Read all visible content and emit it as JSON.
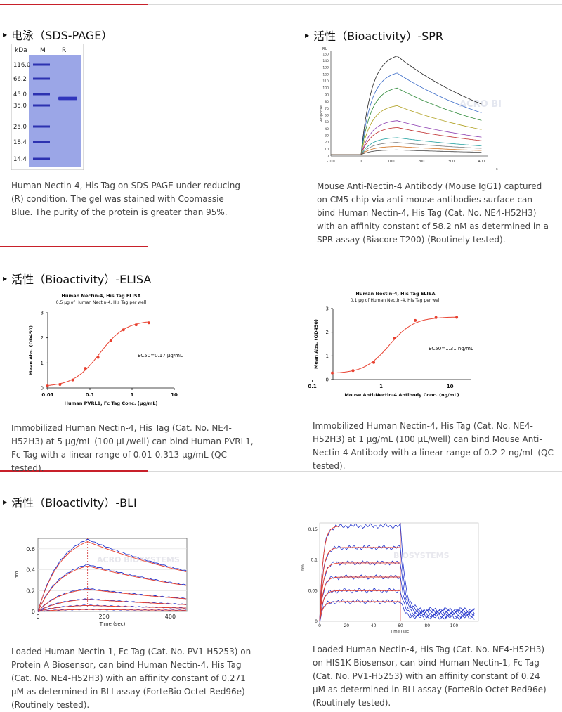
{
  "sections": {
    "sds": {
      "title": "电泳（SDS-PAGE）",
      "gel": {
        "header_kda": "kDa",
        "header_m": "M",
        "header_r": "R",
        "markers": [
          "116.0",
          "66.2",
          "45.0",
          "35.0",
          "25.0",
          "18.4",
          "14.4"
        ]
      },
      "caption": "Human Nectin-4, His Tag on SDS-PAGE under reducing (R) condition. The gel was stained with Coomassie Blue. The purity of the protein is greater than 95%."
    },
    "spr": {
      "title": "活性（Bioactivity）-SPR",
      "caption": "Mouse Anti-Nectin-4 Antibody (Mouse IgG1) captured on CM5 chip via anti-mouse antibodies surface can bind Human Nectin-4, His Tag (Cat. No. NE4-H52H3) with an affinity constant of 58.2 nM as determined in a SPR assay (Biacore T200) (Routinely tested)."
    },
    "elisa": {
      "title": "活性（Bioactivity）-ELISA",
      "caption_left": "Immobilized Human Nectin-4, His Tag (Cat. No. NE4-H52H3) at 5 μg/mL (100 μL/well) can bind Human PVRL1, Fc Tag with a linear range of 0.01-0.313 μg/mL (QC tested).",
      "caption_right": "Immobilized Human Nectin-4, His Tag (Cat. No. NE4-H52H3) at 1 μg/mL (100 μL/well) can bind Mouse Anti-Nectin-4 Antibody with a linear range of 0.2-2 ng/mL (QC tested)."
    },
    "bli": {
      "title": "活性（Bioactivity）-BLI",
      "caption_left": "Loaded Human Nectin-1, Fc Tag (Cat. No. PV1-H5253) on Protein A Biosensor, can bind Human Nectin-4, His Tag (Cat. No. NE4-H52H3) with an affinity constant of 0.271 μM as determined in BLI assay (ForteBio Octet Red96e) (Routinely tested).",
      "caption_right": "Loaded Human Nectin-4, His Tag (Cat. No. NE4-H52H3) on HIS1K Biosensor, can bind Human Nectin-1, Fc Tag (Cat. No. PV1-H5253) with an affinity constant of 0.24 μM as determined in BLI assay (ForteBio Octet Red96e) (Routinely tested)."
    }
  },
  "colors": {
    "accent": "#c8202a",
    "fit": "#e8402f",
    "blue": "#2233cc"
  },
  "chart_data": [
    {
      "id": "spr",
      "type": "line",
      "title": "",
      "xlabel": "s",
      "ylabel": "Response",
      "yunit": "RU",
      "xticks": [
        "-100",
        "0",
        "100",
        "200",
        "300",
        "400"
      ],
      "yticks": [
        "0",
        "10",
        "20",
        "30",
        "40",
        "50",
        "60",
        "70",
        "80",
        "90",
        "100",
        "110",
        "120",
        "130",
        "140",
        "150"
      ],
      "xlim": [
        -100,
        420
      ],
      "ylim": [
        0,
        155
      ],
      "series_peaks": [
        145,
        120,
        98,
        72,
        50,
        40,
        25,
        18,
        12,
        7
      ],
      "watermark": "ACRO BIOSYSTEMS"
    },
    {
      "id": "elisa1",
      "type": "scatter",
      "title": "Human Nectin-4, His Tag ELISA",
      "subtitle": "0.5 μg of Human Nectin-4, His Tag per well",
      "xlabel": "Human PVRL1, Fc Tag Conc. (μg/mL)",
      "ylabel": "Mean Abs. (OD450)",
      "xticks": [
        "0.01",
        "0.1",
        "1",
        "10"
      ],
      "yticks": [
        "0",
        "1",
        "2",
        "3"
      ],
      "xlim_log": [
        -2,
        1
      ],
      "ylim": [
        0,
        3
      ],
      "x": [
        0.0098,
        0.0195,
        0.039,
        0.078,
        0.156,
        0.313,
        0.625,
        1.25,
        2.5
      ],
      "y": [
        0.08,
        0.14,
        0.32,
        0.78,
        1.22,
        1.88,
        2.32,
        2.52,
        2.6
      ],
      "fit": {
        "bottom": 0.05,
        "top": 2.7,
        "ec50": 0.17,
        "hill": 1.4
      },
      "annotation": "EC50=0.17 μg/mL"
    },
    {
      "id": "elisa2",
      "type": "scatter",
      "title": "Human Nectin-4, His Tag ELISA",
      "subtitle": "0.1 μg of Human Nectin-4, His Tag per well",
      "xlabel": "Mouse Anti-Nectin-4 Antibody Conc. (ng/mL)",
      "ylabel": "Mean Abs. (OD450)",
      "xticks": [
        "0.1",
        "1",
        "10"
      ],
      "yticks": [
        "0",
        "1",
        "2",
        "3"
      ],
      "xlim_log": [
        -0.7,
        1.3
      ],
      "ylim": [
        0,
        3
      ],
      "x": [
        0.195,
        0.39,
        0.78,
        1.56,
        3.125,
        6.25,
        12.5
      ],
      "y": [
        0.28,
        0.38,
        0.72,
        1.75,
        2.5,
        2.62,
        2.63
      ],
      "fit": {
        "bottom": 0.25,
        "top": 2.65,
        "ec50": 1.31,
        "hill": 2.4
      },
      "annotation": "EC50=1.31 ng/mL"
    },
    {
      "id": "bli1",
      "type": "line",
      "xlabel": "Time (sec)",
      "ylabel": "nm",
      "xticks": [
        "0",
        "200",
        "400"
      ],
      "yticks": [
        "0",
        "0.2",
        "0.4",
        "0.6"
      ],
      "xlim": [
        0,
        450
      ],
      "ylim": [
        0,
        0.7
      ],
      "assoc_end": 150,
      "peaks": [
        0.69,
        0.45,
        0.22,
        0.12,
        0.06,
        0.02
      ],
      "watermark": "ACRO BIOSYSTEMS"
    },
    {
      "id": "bli2",
      "type": "line",
      "xlabel": "Time (sec)",
      "ylabel": "nm",
      "xticks": [
        "0",
        "20",
        "40",
        "60",
        "80",
        "100"
      ],
      "yticks": [
        "0",
        "0.05",
        "0.1",
        "0.15"
      ],
      "xlim": [
        0,
        118
      ],
      "ylim": [
        0,
        0.16
      ],
      "assoc_end": 60,
      "plateaus": [
        0.155,
        0.12,
        0.095,
        0.072,
        0.05,
        0.032
      ],
      "watermark": "BIOSYSTEMS"
    }
  ]
}
